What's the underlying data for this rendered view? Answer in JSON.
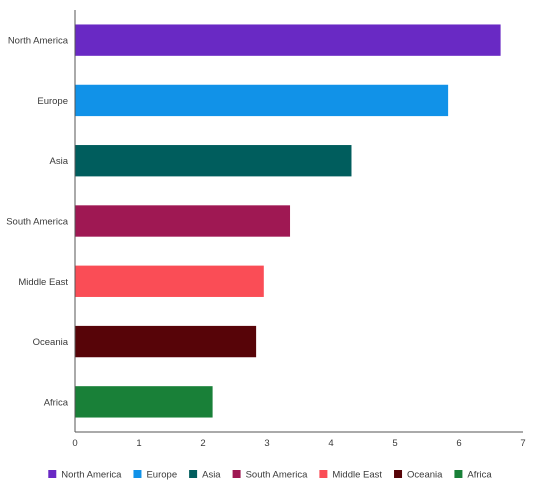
{
  "chart_data": {
    "type": "bar",
    "orientation": "horizontal",
    "categories": [
      "North America",
      "Europe",
      "Asia",
      "South America",
      "Middle East",
      "Oceania",
      "Africa"
    ],
    "values": [
      6.65,
      5.83,
      4.32,
      3.36,
      2.95,
      2.83,
      2.15
    ],
    "colors": [
      "#6929c4",
      "#1192e8",
      "#005d5d",
      "#9f1853",
      "#fa4d56",
      "#570408",
      "#198038"
    ],
    "xlim": [
      0,
      7
    ],
    "xticks": [
      0,
      1,
      2,
      3,
      4,
      5,
      6,
      7
    ],
    "title": "",
    "xlabel": "",
    "ylabel": "",
    "grid": false,
    "legend": {
      "position": "bottom",
      "entries": [
        "North America",
        "Europe",
        "Asia",
        "South America",
        "Middle East",
        "Oceania",
        "Africa"
      ]
    }
  }
}
